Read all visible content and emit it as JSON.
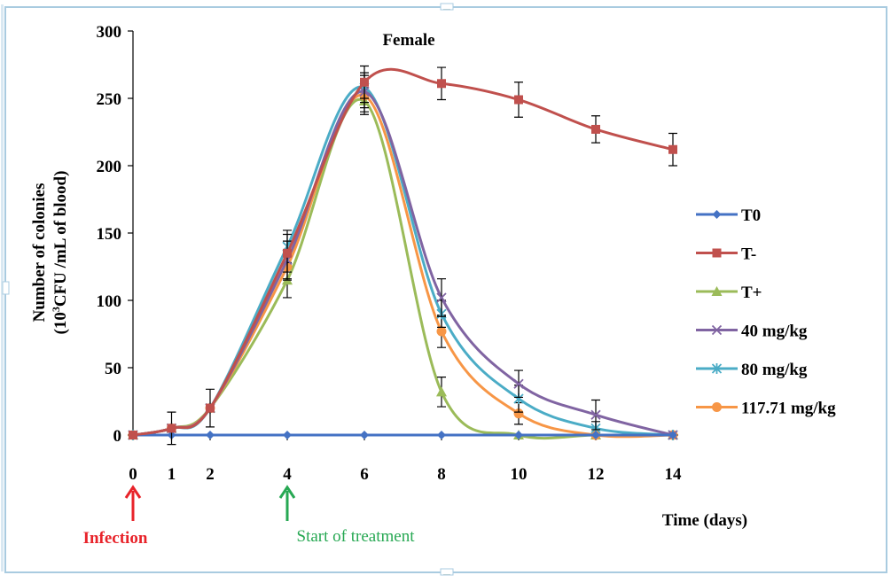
{
  "chart_data": {
    "type": "line",
    "title": "Female",
    "xlabel": "Time (days)",
    "ylabel_line1": "Number of colonies",
    "ylabel_line2_prefix": "(10",
    "ylabel_line2_sup": "3",
    "ylabel_line2_suffix": "CFU /mL of blood)",
    "x": [
      0,
      1,
      2,
      4,
      6,
      8,
      10,
      12,
      14
    ],
    "x_tick_labels": [
      "0",
      "1",
      "2",
      "4",
      "6",
      "8",
      "10",
      "12",
      "14"
    ],
    "ylim": [
      0,
      300
    ],
    "y_ticks": [
      0,
      50,
      100,
      150,
      200,
      250,
      300
    ],
    "grid": false,
    "legend_position": "right",
    "series": [
      {
        "name": "T0",
        "color": "#4472c4",
        "marker": "diamond",
        "values": [
          0,
          0,
          0,
          0,
          0,
          0,
          0,
          0,
          0
        ],
        "errors": [
          0,
          0,
          0,
          0,
          0,
          0,
          0,
          0,
          0
        ]
      },
      {
        "name": "T-",
        "color": "#c0504d",
        "marker": "square",
        "values": [
          0,
          5,
          20,
          135,
          262,
          261,
          249,
          227,
          212
        ],
        "errors": [
          0,
          12,
          14,
          14,
          12,
          12,
          13,
          10,
          12
        ]
      },
      {
        "name": "T+",
        "color": "#9bbb59",
        "marker": "triangle",
        "values": [
          0,
          5,
          20,
          115,
          248,
          32,
          0,
          0,
          0
        ],
        "errors": [
          0,
          0,
          0,
          13,
          10,
          11,
          0,
          0,
          0
        ]
      },
      {
        "name": "40 mg/kg",
        "color": "#8064a2",
        "marker": "x",
        "values": [
          0,
          5,
          20,
          130,
          255,
          102,
          38,
          15,
          0
        ],
        "errors": [
          0,
          0,
          0,
          14,
          12,
          14,
          10,
          11,
          0
        ]
      },
      {
        "name": "80 mg/kg",
        "color": "#4bacc6",
        "marker": "star",
        "values": [
          0,
          5,
          20,
          140,
          258,
          90,
          27,
          5,
          0
        ],
        "errors": [
          0,
          0,
          0,
          12,
          11,
          10,
          10,
          5,
          0
        ]
      },
      {
        "name": "117.71 mg/kg",
        "color": "#f79646",
        "marker": "circle",
        "values": [
          0,
          5,
          20,
          125,
          252,
          77,
          16,
          0,
          0
        ],
        "errors": [
          0,
          0,
          0,
          10,
          12,
          12,
          8,
          0,
          0
        ]
      }
    ],
    "annotations": [
      {
        "id": "infection",
        "text": "Infection",
        "x": 0,
        "color": "#e8232a"
      },
      {
        "id": "treatment",
        "text": "Start of treatment",
        "x": 4,
        "color": "#27a853"
      }
    ]
  }
}
